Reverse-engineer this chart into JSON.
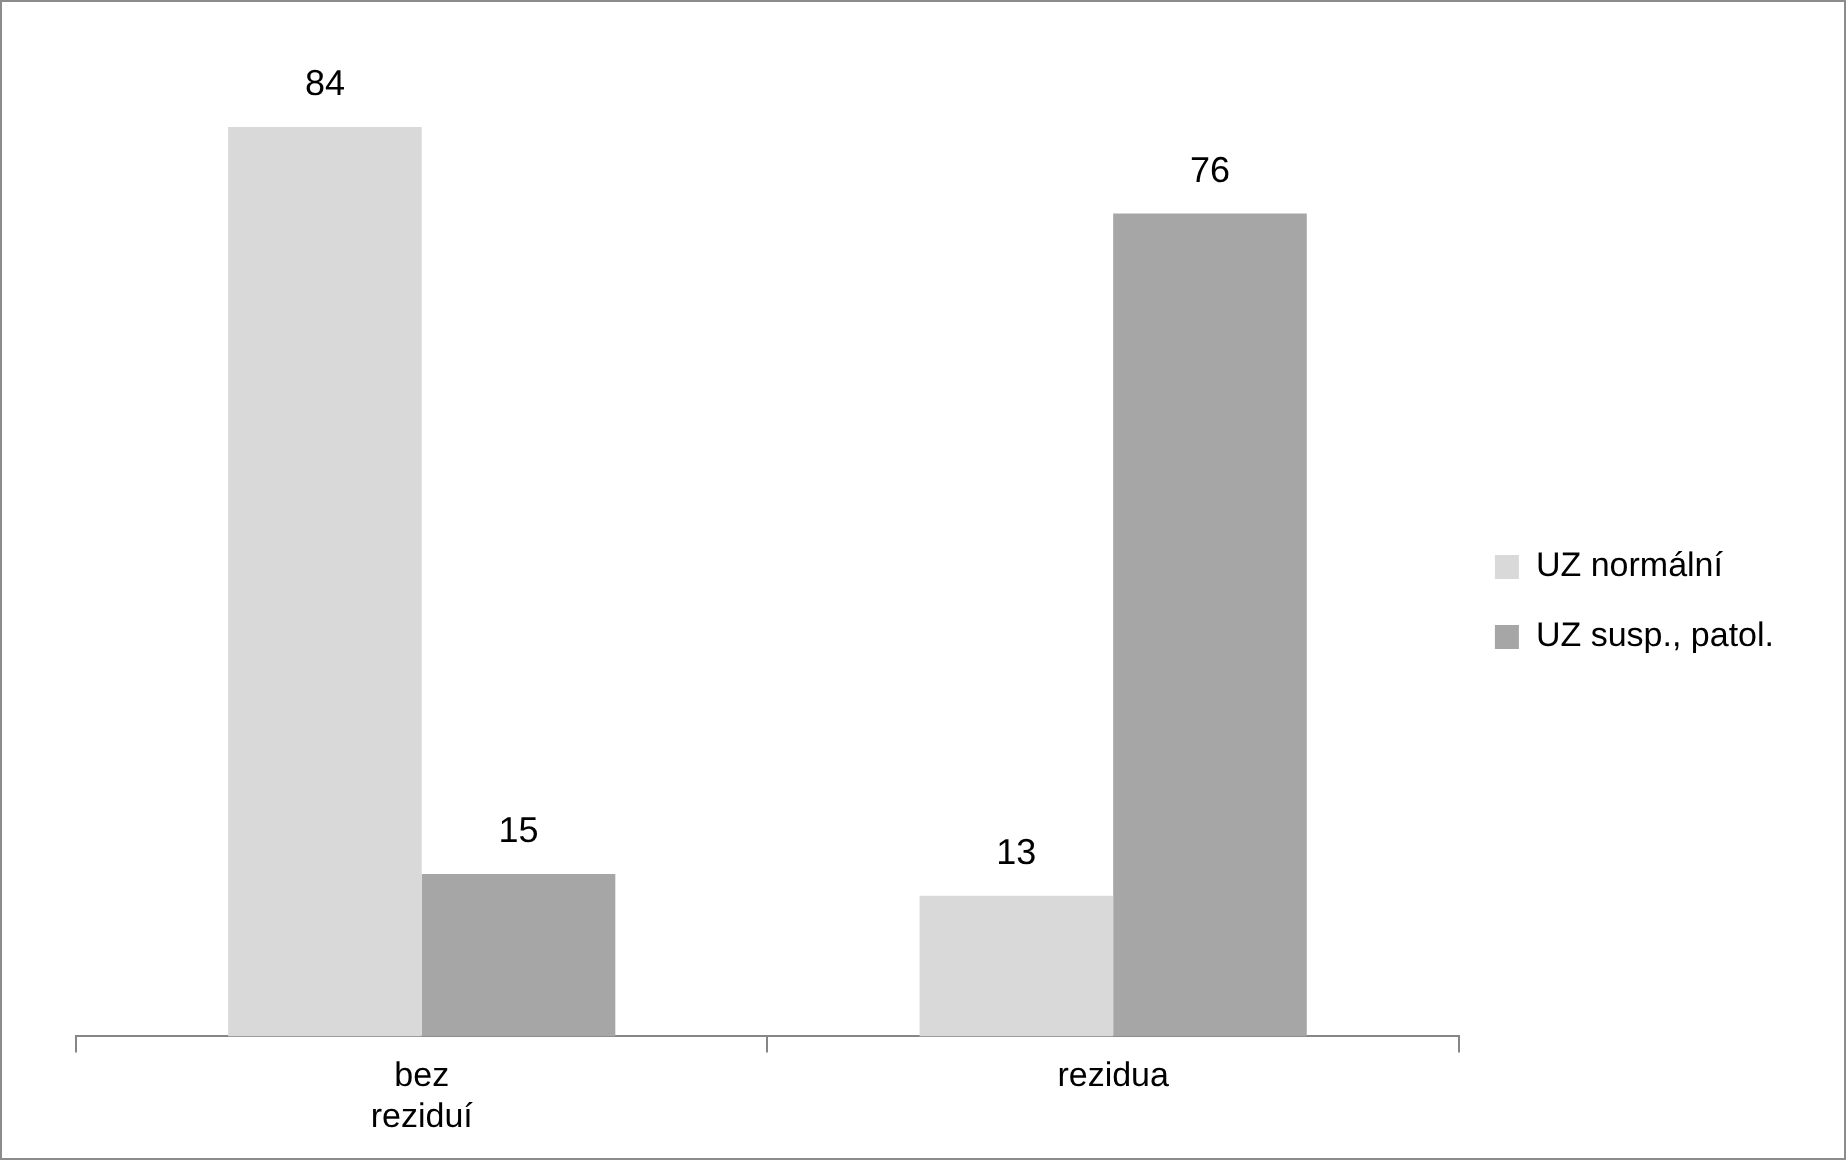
{
  "chart_data": {
    "type": "bar",
    "categories": [
      "bez reziduí",
      "rezidua"
    ],
    "series": [
      {
        "name": "UZ normální",
        "color": "#d9d9d9",
        "values": [
          84,
          13
        ]
      },
      {
        "name": "UZ susp., patol.",
        "color": "#a6a6a6",
        "values": [
          15,
          76
        ]
      }
    ],
    "tick_labels": "x",
    "legend": "right",
    "data_labels": true
  }
}
